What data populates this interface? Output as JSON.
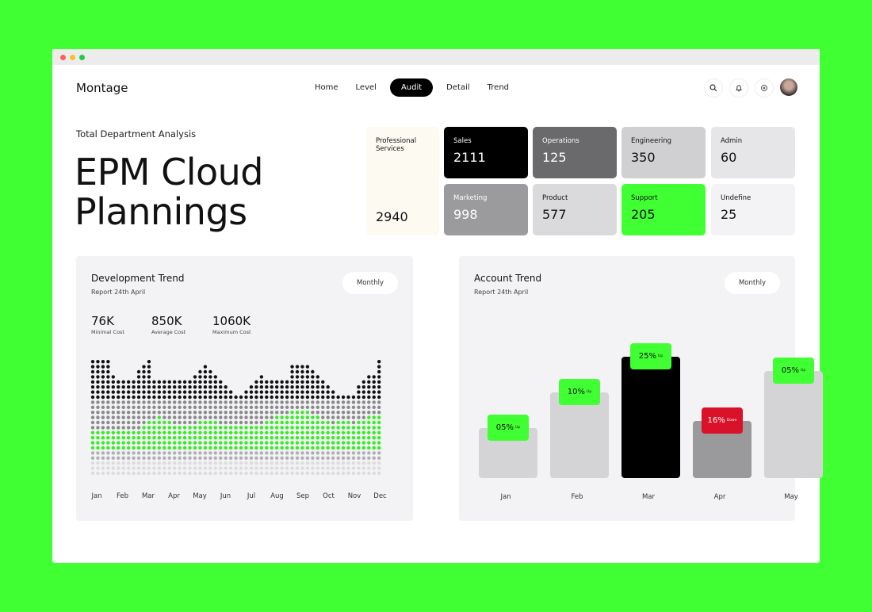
{
  "window": {
    "controls": [
      {
        "name": "close",
        "color": "#ff5f57"
      },
      {
        "name": "minimize",
        "color": "#febc2e"
      },
      {
        "name": "maximize",
        "color": "#28c840"
      }
    ]
  },
  "header": {
    "brand": "Montage",
    "nav": [
      {
        "label": "Home",
        "active": false
      },
      {
        "label": "Level",
        "active": false
      },
      {
        "label": "Audit",
        "active": true
      },
      {
        "label": "Detail",
        "active": false
      },
      {
        "label": "Trend",
        "active": false
      }
    ],
    "icons": [
      "search-icon",
      "bell-icon",
      "settings-icon"
    ]
  },
  "hero": {
    "subtitle": "Total Department Analysis",
    "title_line1": "EPM Cloud",
    "title_line2": "Plannings"
  },
  "departments": [
    {
      "name": "Professional Services",
      "value": "2940",
      "bg": "#fdfaf2",
      "fg": "#111"
    },
    {
      "name": "Sales",
      "value": "2111",
      "bg": "#000000",
      "fg": "#fff"
    },
    {
      "name": "Operations",
      "value": "125",
      "bg": "#6a696b",
      "fg": "#fff"
    },
    {
      "name": "Engineering",
      "value": "350",
      "bg": "#d0cfd1",
      "fg": "#111"
    },
    {
      "name": "Admin",
      "value": "60",
      "bg": "#e6e5e8",
      "fg": "#111"
    },
    {
      "name": "Marketing",
      "value": "998",
      "bg": "#9b9a9c",
      "fg": "#fff"
    },
    {
      "name": "Product",
      "value": "577",
      "bg": "#dad9db",
      "fg": "#111"
    },
    {
      "name": "Support",
      "value": "205",
      "bg": "#40ff33",
      "fg": "#111"
    },
    {
      "name": "Undefine",
      "value": "25",
      "bg": "#f3f2f5",
      "fg": "#111"
    }
  ],
  "development": {
    "title": "Development Trend",
    "report": "Report 24th April",
    "period": "Monthly",
    "stats": [
      {
        "value": "76K",
        "label": "Minimal Cost"
      },
      {
        "value": "850K",
        "label": "Average Cost"
      },
      {
        "value": "1060K",
        "label": "Maximum Cost"
      }
    ]
  },
  "account": {
    "title": "Account Trend",
    "report": "Report 24th April",
    "period": "Monthly"
  },
  "chart_data": [
    {
      "type": "dot-matrix",
      "months": [
        "Jan",
        "Feb",
        "Mar",
        "Apr",
        "May",
        "Jun",
        "Jul",
        "Aug",
        "Sep",
        "Oct",
        "Nov",
        "Dec"
      ],
      "column_heights": [
        23,
        23,
        23,
        23,
        20,
        19,
        19,
        19,
        19,
        21,
        22,
        23,
        19,
        19,
        19,
        19,
        19,
        19,
        19,
        19,
        20,
        21,
        22,
        21,
        20,
        19,
        18,
        17,
        16,
        16,
        17,
        18,
        19,
        20,
        19,
        19,
        19,
        19,
        19,
        22,
        22,
        22,
        22,
        21,
        20,
        19,
        18,
        17,
        16,
        16,
        16,
        16,
        18,
        19,
        20,
        20,
        23
      ],
      "green_top": [
        8,
        8,
        8,
        8,
        8,
        8,
        8,
        8,
        8,
        8,
        9,
        10,
        10,
        11,
        10,
        10,
        9,
        9,
        9,
        9,
        9,
        10,
        10,
        10,
        10,
        9,
        9,
        9,
        9,
        9,
        9,
        9,
        9,
        9,
        10,
        10,
        11,
        11,
        11,
        12,
        12,
        12,
        12,
        11,
        11,
        10,
        10,
        9,
        10,
        10,
        10,
        9,
        10,
        10,
        11,
        11,
        11
      ],
      "colors": {
        "top": "#111111",
        "mid": "#8a898b",
        "accent": "#33ee22",
        "low": "#b0afb1",
        "base": "#dcdbdd"
      }
    },
    {
      "type": "bar",
      "categories": [
        "Jan",
        "Feb",
        "Mar",
        "Apr",
        "May"
      ],
      "values": [
        35,
        60,
        85,
        40,
        75
      ],
      "labels": [
        {
          "pct": "05%",
          "dir": "Up"
        },
        {
          "pct": "10%",
          "dir": "Up"
        },
        {
          "pct": "25%",
          "dir": "Up"
        },
        {
          "pct": "16%",
          "dir": "Down"
        },
        {
          "pct": "05%",
          "dir": "Up"
        }
      ],
      "bar_colors": [
        "#d4d3d5",
        "#d4d3d5",
        "#000000",
        "#9a999b",
        "#d4d3d5"
      ],
      "up_color": "#40ff33",
      "down_color": "#d9122a"
    }
  ]
}
